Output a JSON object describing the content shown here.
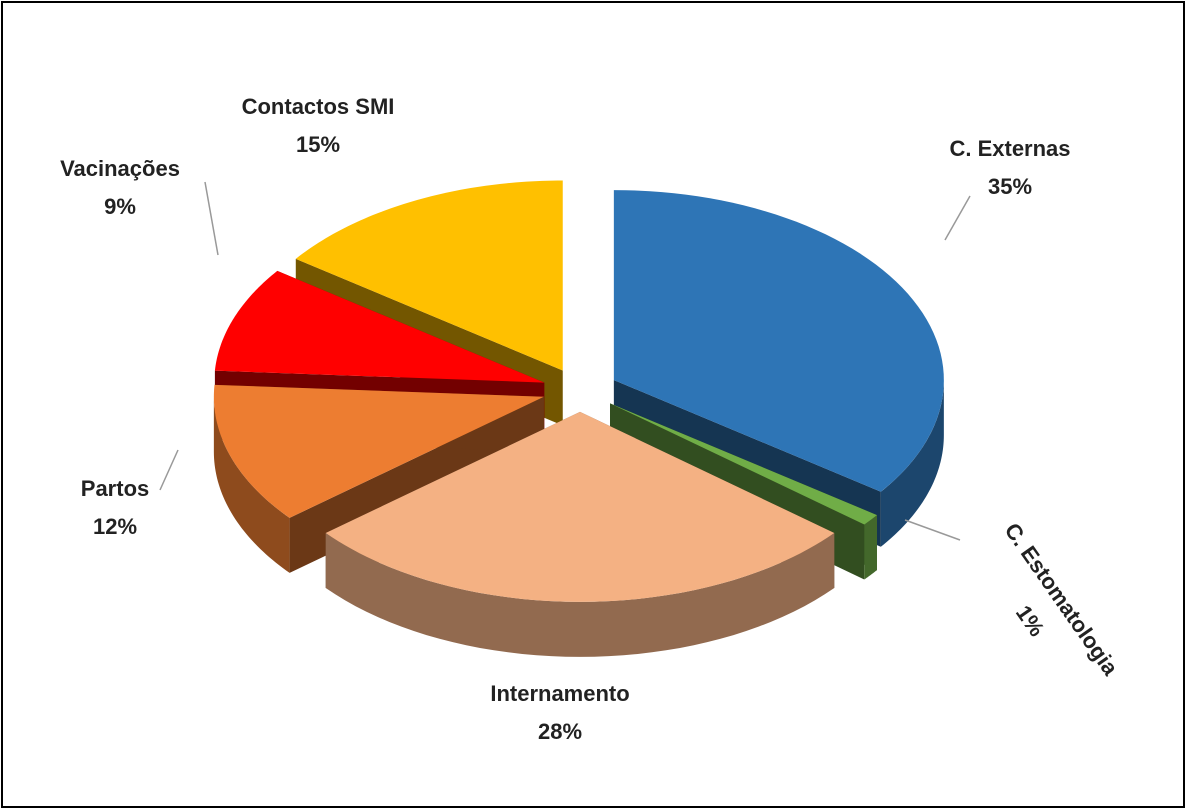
{
  "chart_data": {
    "type": "pie",
    "categories": [
      "C. Externas",
      "C. Estomatologia",
      "Internamento",
      "Partos",
      "Vacinações",
      "Contactos SMI"
    ],
    "values": [
      35,
      1,
      28,
      12,
      9,
      15
    ],
    "value_labels": [
      "35%",
      "1%",
      "28%",
      "12%",
      "9%",
      "15%"
    ],
    "colors": [
      "#2e75b6",
      "#70ad47",
      "#f4b183",
      "#ed7d31",
      "#ff0000",
      "#ffc000"
    ]
  }
}
